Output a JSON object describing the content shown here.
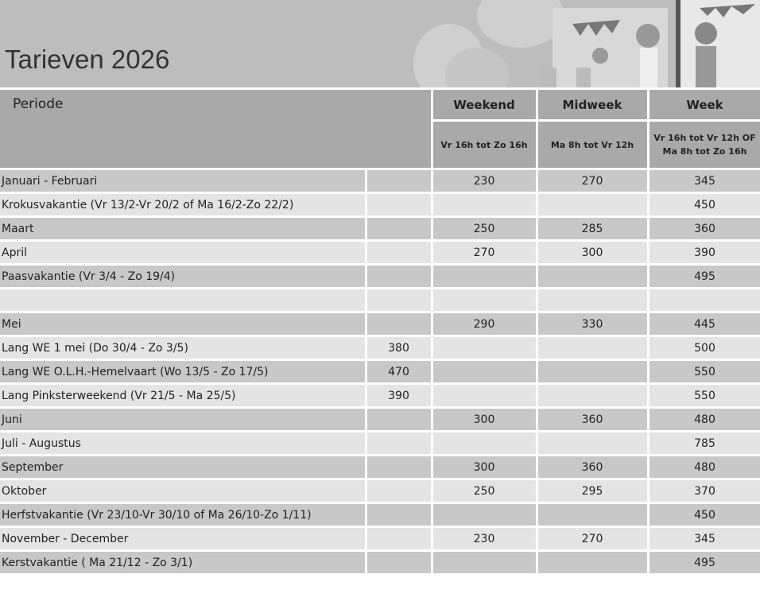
{
  "title": "Tarieven 2026",
  "header": {
    "periode": "Periode",
    "weekend": "Weekend",
    "midweek": "Midweek",
    "week": "Week",
    "weekend_sub": "Vr 16h tot Zo 16h",
    "midweek_sub": "Ma 8h tot Vr 12h",
    "week_sub_1": "Vr 16h tot Vr 12h  OF",
    "week_sub_2": "Ma 8h tot Zo 16h"
  },
  "rows": [
    {
      "periode": "Januari - Februari",
      "lang": "",
      "weekend": "230",
      "midweek": "270",
      "week": "345"
    },
    {
      "periode": "Krokusvakantie (Vr 13/2-Vr 20/2 of Ma 16/2-Zo 22/2)",
      "lang": "",
      "weekend": "",
      "midweek": "",
      "week": "450"
    },
    {
      "periode": "Maart",
      "lang": "",
      "weekend": "250",
      "midweek": "285",
      "week": "360"
    },
    {
      "periode": "April",
      "lang": "",
      "weekend": "270",
      "midweek": "300",
      "week": "390"
    },
    {
      "periode": "Paasvakantie (Vr 3/4 - Zo 19/4)",
      "lang": "",
      "weekend": "",
      "midweek": "",
      "week": "495"
    },
    {
      "periode": "",
      "lang": "",
      "weekend": "",
      "midweek": "",
      "week": ""
    },
    {
      "periode": "Mei",
      "lang": "",
      "weekend": "290",
      "midweek": "330",
      "week": "445"
    },
    {
      "periode": "Lang WE 1 mei (Do 30/4 - Zo 3/5)",
      "lang": "380",
      "weekend": "",
      "midweek": "",
      "week": "500"
    },
    {
      "periode": "Lang WE O.L.H.-Hemelvaart (Wo 13/5 - Zo 17/5)",
      "lang": "470",
      "weekend": "",
      "midweek": "",
      "week": "550"
    },
    {
      "periode": "Lang Pinksterweekend (Vr 21/5 - Ma 25/5)",
      "lang": "390",
      "weekend": "",
      "midweek": "",
      "week": "550"
    },
    {
      "periode": "Juni",
      "lang": "",
      "weekend": "300",
      "midweek": "360",
      "week": "480"
    },
    {
      "periode": "Juli - Augustus",
      "lang": "",
      "weekend": "",
      "midweek": "",
      "week": "785"
    },
    {
      "periode": "September",
      "lang": "",
      "weekend": "300",
      "midweek": "360",
      "week": "480"
    },
    {
      "periode": "Oktober",
      "lang": "",
      "weekend": "250",
      "midweek": "295",
      "week": "370"
    },
    {
      "periode": "Herfstvakantie (Vr 23/10-Vr 30/10 of Ma 26/10-Zo 1/11)",
      "lang": "",
      "weekend": "",
      "midweek": "",
      "week": "450"
    },
    {
      "periode": "November - December",
      "lang": "",
      "weekend": "230",
      "midweek": "270",
      "week": "345"
    },
    {
      "periode": "Kerstvakantie ( Ma 21/12 - Zo 3/1)",
      "lang": "",
      "weekend": "",
      "midweek": "",
      "week": "495"
    }
  ]
}
